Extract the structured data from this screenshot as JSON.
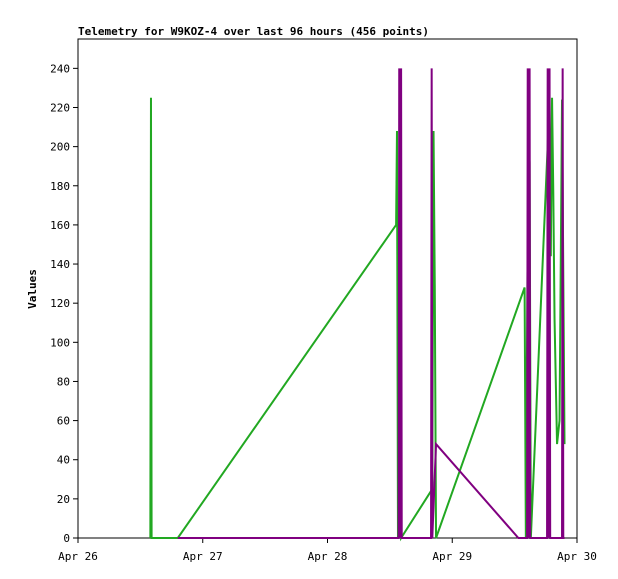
{
  "chart_data": {
    "type": "line",
    "title": "Telemetry for W9KOZ-4 over last 96 hours (456 points)",
    "ylabel": "Values",
    "xlim": [
      0,
      4
    ],
    "xticks": [
      {
        "value": 0,
        "label": "Apr 26"
      },
      {
        "value": 1,
        "label": "Apr 27"
      },
      {
        "value": 2,
        "label": "Apr 28"
      },
      {
        "value": 3,
        "label": "Apr 29"
      },
      {
        "value": 4,
        "label": "Apr 30"
      }
    ],
    "ylim": [
      0,
      255
    ],
    "yticks": [
      0,
      20,
      40,
      60,
      80,
      100,
      120,
      140,
      160,
      180,
      200,
      220,
      240
    ],
    "grid": false,
    "series": [
      {
        "color": "#22a822",
        "x": [
          0.58,
          0.585,
          0.59,
          0.8,
          2.55,
          2.557,
          2.565,
          2.58,
          2.59,
          2.84,
          2.85,
          2.86,
          2.87,
          3.58,
          3.59,
          3.61,
          3.62,
          3.63,
          3.77,
          3.78,
          3.79,
          3.8,
          3.81,
          3.82,
          3.83,
          3.84,
          3.86,
          3.88,
          3.9
        ],
        "values": [
          0,
          225,
          0,
          0,
          160,
          208,
          0,
          225,
          0,
          25,
          208,
          128,
          0,
          128,
          0,
          208,
          192,
          0,
          208,
          225,
          144,
          225,
          176,
          112,
          80,
          48,
          60,
          224,
          48
        ]
      },
      {
        "color": "#800080",
        "x": [
          0.8,
          2.57,
          2.575,
          2.58,
          2.59,
          2.595,
          2.6,
          2.83,
          2.835,
          2.84,
          2.87,
          3.53,
          3.6,
          3.605,
          3.61,
          3.62,
          3.625,
          3.63,
          3.76,
          3.765,
          3.77,
          3.78,
          3.785,
          3.79,
          3.88,
          3.885,
          3.89,
          3.9
        ],
        "values": [
          0,
          0,
          240,
          0,
          240,
          0,
          0,
          0,
          240,
          0,
          48,
          0,
          0,
          240,
          0,
          240,
          0,
          0,
          0,
          240,
          0,
          240,
          0,
          0,
          0,
          240,
          0,
          0
        ]
      }
    ]
  }
}
